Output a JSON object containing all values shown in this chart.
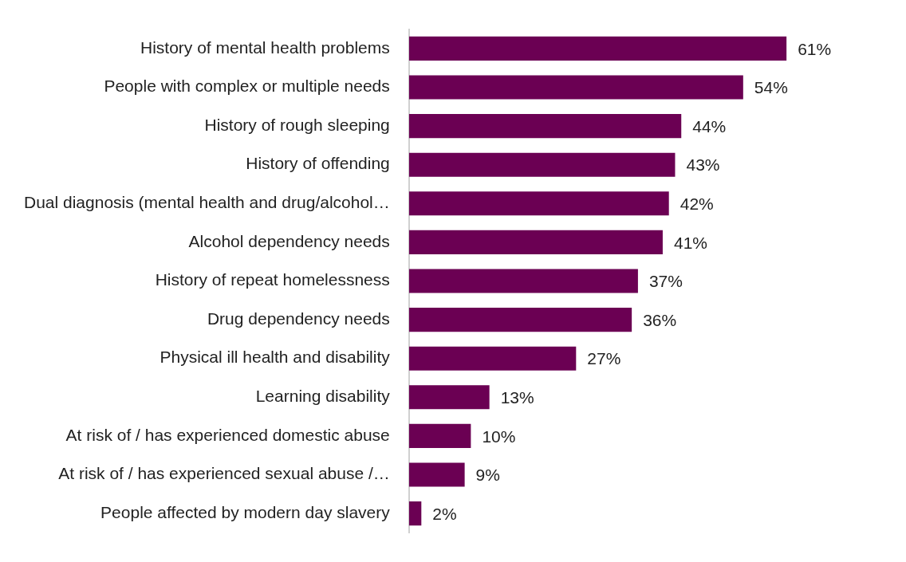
{
  "chart_data": {
    "type": "bar",
    "orientation": "horizontal",
    "categories": [
      "History of mental health problems",
      "People with complex or multiple needs",
      "History of rough sleeping",
      "History of offending",
      "Dual diagnosis (mental health and drug/alcohol…",
      "Alcohol dependency needs",
      "History of repeat homelessness",
      "Drug dependency needs",
      "Physical ill health and disability",
      "Learning disability",
      "At risk of / has experienced domestic abuse",
      "At risk of / has experienced sexual abuse /…",
      "People affected by modern day slavery"
    ],
    "values": [
      61,
      54,
      44,
      43,
      42,
      41,
      37,
      36,
      27,
      13,
      10,
      9,
      2
    ],
    "value_labels": [
      "61%",
      "54%",
      "44%",
      "43%",
      "42%",
      "41%",
      "37%",
      "36%",
      "27%",
      "13%",
      "10%",
      "9%",
      "2%"
    ],
    "color": "#6b0053",
    "legend": false,
    "tick_labels": "y"
  }
}
